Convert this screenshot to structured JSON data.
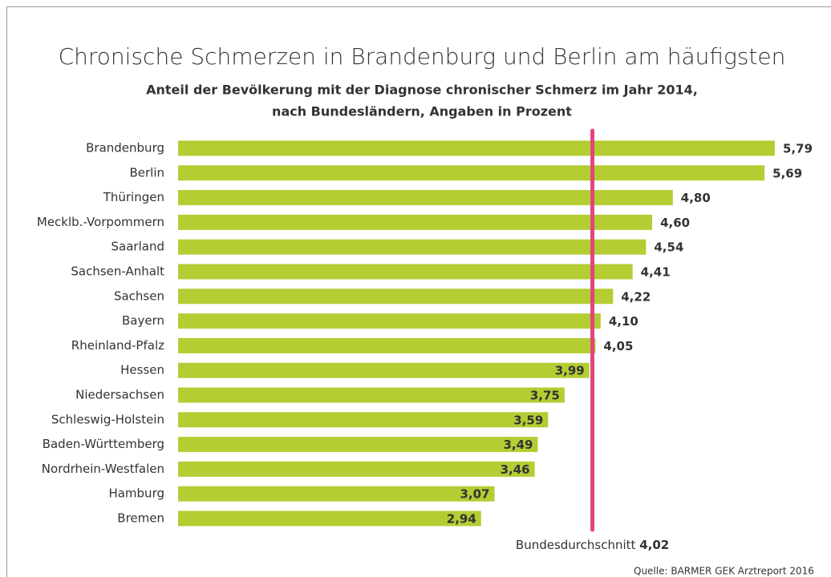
{
  "chart_data": {
    "type": "bar",
    "orientation": "horizontal",
    "title": "Chronische Schmerzen in Brandenburg und Berlin am häufigsten",
    "subtitle": [
      "Anteil der Bevölkerung mit der Diagnose chronischer Schmerz im Jahr 2014,",
      "nach Bundesländern, Angaben in Prozent"
    ],
    "categories": [
      "Brandenburg",
      "Berlin",
      "Thüringen",
      "Mecklb.-Vorpommern",
      "Saarland",
      "Sachsen-Anhalt",
      "Sachsen",
      "Bayern",
      "Rheinland-Pfalz",
      "Hessen",
      "Niedersachsen",
      "Schleswig-Holstein",
      "Baden-Württemberg",
      "Nordrhein-Westfalen",
      "Hamburg",
      "Bremen"
    ],
    "values": [
      5.79,
      5.69,
      4.8,
      4.6,
      4.54,
      4.41,
      4.22,
      4.1,
      4.05,
      3.99,
      3.75,
      3.59,
      3.49,
      3.46,
      3.07,
      2.94
    ],
    "value_labels": [
      "5,79",
      "5,69",
      "4,80",
      "4,60",
      "4,54",
      "4,41",
      "4,22",
      "4,10",
      "4,05",
      "3,99",
      "3,75",
      "3,59",
      "3,49",
      "3,46",
      "3,07",
      "2,94"
    ],
    "color": "#b3cd33",
    "reference_line": {
      "label": "Bundesdurchschnitt",
      "value": 4.02,
      "value_label": "4,02",
      "color": "#e6427e"
    },
    "source": "Quelle: BARMER GEK Arztreport 2016"
  }
}
